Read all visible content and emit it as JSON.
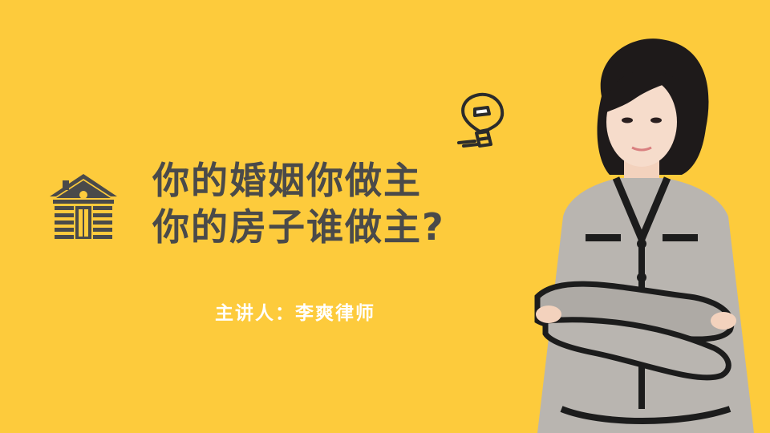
{
  "slide": {
    "title_line_1": "你的婚姻你做主",
    "title_line_2": "你的房子谁做主?",
    "speaker": "主讲人：李爽律师"
  },
  "icons": {
    "house": "house-icon",
    "bulb": "light-bulb-icon"
  },
  "colors": {
    "background": "#fdcb3c",
    "title": "#4a4a4a",
    "speaker": "#ffffff",
    "icon": "#4a4a4a"
  }
}
